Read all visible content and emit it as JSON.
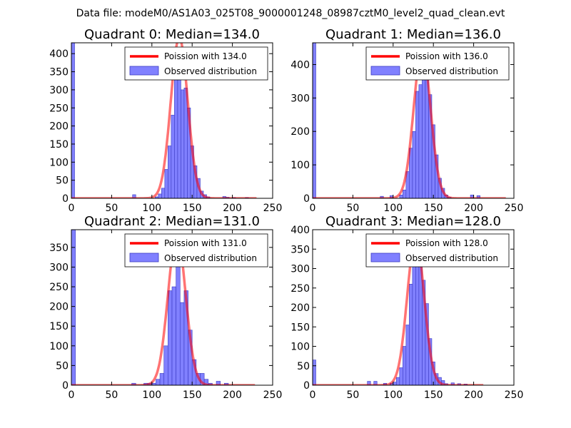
{
  "figure": {
    "suptitle": "Data file: modeM0/AS1A03_025T08_9000001248_08987cztM0_level2_quad_clean.evt",
    "bg": "#ffffff"
  },
  "colors": {
    "bars_fill": "#8080ff",
    "bars_edge": "#3a3ac0",
    "curve": "#ff0000",
    "axes": "#000000"
  },
  "chart_data": [
    {
      "type": "bar+line",
      "title": "Quadrant 0: Median=134.0",
      "median": 134.0,
      "xlim": [
        0,
        250
      ],
      "ylim": [
        0,
        430
      ],
      "xticks": [
        0,
        50,
        100,
        150,
        200,
        250
      ],
      "yticks": [
        0,
        50,
        100,
        150,
        200,
        250,
        300,
        350,
        400
      ],
      "bin_width": 4,
      "bins": [
        {
          "x": 0,
          "y": 430
        },
        {
          "x": 76,
          "y": 10
        },
        {
          "x": 104,
          "y": 4
        },
        {
          "x": 108,
          "y": 12
        },
        {
          "x": 112,
          "y": 28
        },
        {
          "x": 116,
          "y": 80
        },
        {
          "x": 120,
          "y": 145
        },
        {
          "x": 124,
          "y": 230
        },
        {
          "x": 128,
          "y": 330
        },
        {
          "x": 132,
          "y": 360
        },
        {
          "x": 136,
          "y": 300
        },
        {
          "x": 140,
          "y": 305
        },
        {
          "x": 144,
          "y": 250
        },
        {
          "x": 148,
          "y": 145
        },
        {
          "x": 152,
          "y": 90
        },
        {
          "x": 156,
          "y": 55
        },
        {
          "x": 160,
          "y": 20
        },
        {
          "x": 164,
          "y": 10
        },
        {
          "x": 168,
          "y": 4
        },
        {
          "x": 188,
          "y": 5
        },
        {
          "x": 192,
          "y": 3
        },
        {
          "x": 200,
          "y": 2
        },
        {
          "x": 216,
          "y": 2
        }
      ],
      "curve": {
        "peak": 445,
        "sigma": 10.5,
        "x_range": [
          0,
          230
        ]
      },
      "legend": {
        "line_label": "Poission with 134.0",
        "bar_label": "Observed distribution"
      }
    },
    {
      "type": "bar+line",
      "title": "Quadrant 1: Median=136.0",
      "median": 136.0,
      "xlim": [
        0,
        250
      ],
      "ylim": [
        0,
        465
      ],
      "xticks": [
        0,
        50,
        100,
        150,
        200,
        250
      ],
      "yticks": [
        0,
        100,
        200,
        300,
        400
      ],
      "bin_width": 4,
      "bins": [
        {
          "x": 0,
          "y": 465
        },
        {
          "x": 84,
          "y": 6
        },
        {
          "x": 96,
          "y": 8
        },
        {
          "x": 108,
          "y": 10
        },
        {
          "x": 112,
          "y": 25
        },
        {
          "x": 116,
          "y": 80
        },
        {
          "x": 120,
          "y": 150
        },
        {
          "x": 124,
          "y": 200
        },
        {
          "x": 128,
          "y": 320
        },
        {
          "x": 132,
          "y": 340
        },
        {
          "x": 136,
          "y": 400
        },
        {
          "x": 140,
          "y": 405
        },
        {
          "x": 144,
          "y": 310
        },
        {
          "x": 148,
          "y": 220
        },
        {
          "x": 152,
          "y": 130
        },
        {
          "x": 156,
          "y": 60
        },
        {
          "x": 160,
          "y": 30
        },
        {
          "x": 164,
          "y": 10
        },
        {
          "x": 168,
          "y": 3
        },
        {
          "x": 196,
          "y": 10
        },
        {
          "x": 204,
          "y": 8
        }
      ],
      "curve": {
        "peak": 445,
        "sigma": 10.5,
        "x_range": [
          0,
          240
        ]
      },
      "legend": {
        "line_label": "Poission with 136.0",
        "bar_label": "Observed distribution"
      }
    },
    {
      "type": "bar+line",
      "title": "Quadrant 2: Median=131.0",
      "median": 131.0,
      "xlim": [
        0,
        250
      ],
      "ylim": [
        0,
        395
      ],
      "xticks": [
        0,
        50,
        100,
        150,
        200,
        250
      ],
      "yticks": [
        0,
        50,
        100,
        150,
        200,
        250,
        300,
        350
      ],
      "bin_width": 5,
      "bins": [
        {
          "x": 0,
          "y": 395
        },
        {
          "x": 75,
          "y": 5
        },
        {
          "x": 90,
          "y": 5
        },
        {
          "x": 95,
          "y": 5
        },
        {
          "x": 100,
          "y": 5
        },
        {
          "x": 105,
          "y": 15
        },
        {
          "x": 110,
          "y": 30
        },
        {
          "x": 115,
          "y": 100
        },
        {
          "x": 120,
          "y": 240
        },
        {
          "x": 125,
          "y": 250
        },
        {
          "x": 130,
          "y": 345
        },
        {
          "x": 135,
          "y": 210
        },
        {
          "x": 140,
          "y": 240
        },
        {
          "x": 145,
          "y": 140
        },
        {
          "x": 150,
          "y": 65
        },
        {
          "x": 155,
          "y": 30
        },
        {
          "x": 160,
          "y": 30
        },
        {
          "x": 165,
          "y": 15
        },
        {
          "x": 170,
          "y": 5
        },
        {
          "x": 180,
          "y": 10
        },
        {
          "x": 190,
          "y": 5
        }
      ],
      "curve": {
        "peak": 380,
        "sigma": 11,
        "x_range": [
          0,
          228
        ]
      },
      "legend": {
        "line_label": "Poission with 131.0",
        "bar_label": "Observed distribution"
      }
    },
    {
      "type": "bar+line",
      "title": "Quadrant 3: Median=128.0",
      "median": 128.0,
      "xlim": [
        0,
        250
      ],
      "ylim": [
        0,
        400
      ],
      "xticks": [
        0,
        50,
        100,
        150,
        200,
        250
      ],
      "yticks": [
        0,
        50,
        100,
        150,
        200,
        250,
        300,
        350,
        400
      ],
      "bin_width": 4,
      "bins": [
        {
          "x": 0,
          "y": 65
        },
        {
          "x": 68,
          "y": 10
        },
        {
          "x": 76,
          "y": 10
        },
        {
          "x": 88,
          "y": 5
        },
        {
          "x": 96,
          "y": 5
        },
        {
          "x": 100,
          "y": 8
        },
        {
          "x": 104,
          "y": 20
        },
        {
          "x": 108,
          "y": 45
        },
        {
          "x": 112,
          "y": 100
        },
        {
          "x": 116,
          "y": 155
        },
        {
          "x": 120,
          "y": 260
        },
        {
          "x": 124,
          "y": 370
        },
        {
          "x": 128,
          "y": 355
        },
        {
          "x": 132,
          "y": 320
        },
        {
          "x": 136,
          "y": 270
        },
        {
          "x": 140,
          "y": 210
        },
        {
          "x": 144,
          "y": 120
        },
        {
          "x": 148,
          "y": 60
        },
        {
          "x": 152,
          "y": 30
        },
        {
          "x": 156,
          "y": 20
        },
        {
          "x": 160,
          "y": 12
        },
        {
          "x": 164,
          "y": 4
        },
        {
          "x": 172,
          "y": 6
        },
        {
          "x": 180,
          "y": 4
        },
        {
          "x": 188,
          "y": 3
        }
      ],
      "curve": {
        "peak": 380,
        "sigma": 10.5,
        "x_range": [
          0,
          212
        ]
      },
      "legend": {
        "line_label": "Poission with 128.0",
        "bar_label": "Observed distribution"
      }
    }
  ]
}
